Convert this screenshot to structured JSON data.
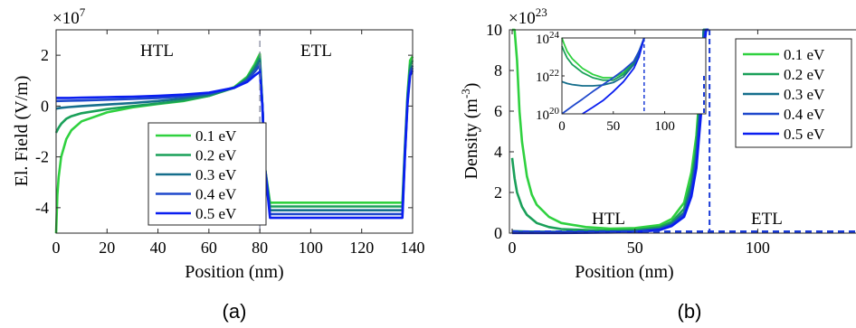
{
  "chart_data": [
    {
      "type": "line",
      "panel_label": "(a)",
      "xlabel": "Position (nm)",
      "ylabel": "El. Field (V/m)",
      "y_multiplier_label": "×10",
      "y_multiplier_exp": "7",
      "xlim": [
        0,
        140
      ],
      "ylim": [
        -5,
        3
      ],
      "xticks": [
        "0",
        "20",
        "40",
        "60",
        "80",
        "100",
        "120",
        "140"
      ],
      "yticks": [
        "-4",
        "-2",
        "0",
        "2"
      ],
      "region_labels": [
        "HTL",
        "ETL"
      ],
      "interface_x": 80,
      "legend_position": "lower-center",
      "series": [
        {
          "name": "0.1 eV",
          "color": "#2fd13f",
          "x": [
            0,
            0.5,
            1,
            2,
            4,
            6,
            10,
            20,
            30,
            40,
            50,
            60,
            70,
            75,
            78,
            80,
            81,
            82,
            84,
            90,
            110,
            130,
            136,
            137,
            138,
            139,
            140
          ],
          "y": [
            -5,
            -3.5,
            -2.8,
            -2.0,
            -1.3,
            -0.95,
            -0.6,
            -0.25,
            -0.05,
            0.08,
            0.2,
            0.4,
            0.75,
            1.15,
            1.65,
            2.05,
            0.0,
            -2.4,
            -3.8,
            -3.8,
            -3.8,
            -3.8,
            -3.8,
            -1.5,
            0.5,
            1.8,
            1.95
          ]
        },
        {
          "name": "0.2 eV",
          "color": "#1aa059",
          "x": [
            0,
            1,
            2,
            4,
            6,
            10,
            20,
            30,
            40,
            50,
            60,
            70,
            75,
            78,
            80,
            81,
            82,
            84,
            90,
            110,
            130,
            136,
            137,
            138,
            139,
            140
          ],
          "y": [
            -1.05,
            -0.85,
            -0.7,
            -0.5,
            -0.4,
            -0.28,
            -0.12,
            0.0,
            0.1,
            0.22,
            0.4,
            0.72,
            1.1,
            1.55,
            1.95,
            0.0,
            -2.4,
            -3.95,
            -3.95,
            -3.95,
            -3.95,
            -3.95,
            -1.6,
            0.4,
            1.6,
            1.8
          ]
        },
        {
          "name": "0.3 eV",
          "color": "#156e8c",
          "x": [
            0,
            2,
            5,
            10,
            20,
            30,
            40,
            50,
            60,
            70,
            75,
            78,
            80,
            81,
            82,
            84,
            90,
            110,
            130,
            136,
            137,
            138,
            139,
            140
          ],
          "y": [
            -0.1,
            -0.07,
            -0.04,
            0.0,
            0.06,
            0.12,
            0.2,
            0.3,
            0.45,
            0.72,
            1.05,
            1.45,
            1.8,
            0.0,
            -2.4,
            -4.1,
            -4.1,
            -4.1,
            -4.1,
            -4.1,
            -1.7,
            0.3,
            1.4,
            1.6
          ]
        },
        {
          "name": "0.4 eV",
          "color": "#1f48cc",
          "x": [
            0,
            5,
            10,
            20,
            30,
            40,
            50,
            60,
            70,
            75,
            78,
            80,
            81,
            82,
            84,
            90,
            110,
            130,
            136,
            137,
            138,
            139,
            140
          ],
          "y": [
            0.2,
            0.21,
            0.22,
            0.25,
            0.28,
            0.32,
            0.38,
            0.5,
            0.72,
            1.0,
            1.35,
            1.6,
            0.0,
            -2.4,
            -4.25,
            -4.25,
            -4.25,
            -4.25,
            -4.25,
            -1.8,
            0.2,
            1.3,
            1.5
          ]
        },
        {
          "name": "0.5 eV",
          "color": "#0a1ef0",
          "x": [
            0,
            5,
            10,
            20,
            30,
            40,
            50,
            60,
            70,
            75,
            78,
            80,
            81,
            82,
            84,
            90,
            110,
            130,
            136,
            137,
            138,
            139,
            140
          ],
          "y": [
            0.32,
            0.32,
            0.33,
            0.35,
            0.37,
            0.4,
            0.45,
            0.53,
            0.72,
            0.95,
            1.2,
            1.35,
            0.0,
            -2.4,
            -4.4,
            -4.4,
            -4.4,
            -4.4,
            -4.4,
            -1.9,
            0.1,
            1.2,
            1.4
          ]
        }
      ]
    },
    {
      "type": "line",
      "panel_label": "(b)",
      "xlabel": "Position (nm)",
      "ylabel_prefix": "Density (m",
      "ylabel_exp": "-3",
      "ylabel_suffix": ")",
      "y_multiplier_label": "×10",
      "y_multiplier_exp": "23",
      "xlim": [
        0,
        140
      ],
      "ylim": [
        0,
        10
      ],
      "xticks": [
        "0",
        "50",
        "100"
      ],
      "yticks": [
        "0",
        "2",
        "4",
        "6",
        "8",
        "10"
      ],
      "region_labels": [
        "HTL",
        "ETL"
      ],
      "interface_x": 80,
      "legend_position": "top-right",
      "series": [
        {
          "name": "0.1 eV",
          "color": "#2fd13f",
          "x": [
            0,
            1,
            2,
            3,
            4,
            6,
            8,
            10,
            15,
            20,
            30,
            40,
            50,
            60,
            65,
            70,
            73,
            75,
            77,
            78,
            79,
            80
          ],
          "y": [
            10,
            10,
            8.5,
            6.0,
            4.5,
            2.8,
            1.9,
            1.4,
            0.8,
            0.5,
            0.3,
            0.22,
            0.25,
            0.4,
            0.7,
            1.5,
            3.0,
            4.8,
            8.0,
            10,
            10,
            10
          ]
        },
        {
          "name": "0.2 eV",
          "color": "#1aa059",
          "x": [
            0,
            1,
            2,
            4,
            6,
            10,
            15,
            20,
            30,
            40,
            50,
            60,
            65,
            70,
            73,
            75,
            77,
            78,
            79,
            80
          ],
          "y": [
            3.7,
            2.7,
            2.0,
            1.3,
            0.9,
            0.5,
            0.3,
            0.2,
            0.15,
            0.12,
            0.15,
            0.3,
            0.55,
            1.2,
            2.5,
            4.2,
            7.5,
            10,
            10,
            10
          ]
        },
        {
          "name": "0.3 eV",
          "color": "#156e8c",
          "x": [
            0,
            5,
            10,
            20,
            30,
            40,
            50,
            60,
            65,
            70,
            73,
            75,
            77,
            78,
            79,
            80
          ],
          "y": [
            0.1,
            0.08,
            0.07,
            0.06,
            0.06,
            0.07,
            0.1,
            0.22,
            0.45,
            1.0,
            2.2,
            3.8,
            7.0,
            10,
            10,
            10
          ]
        },
        {
          "name": "0.4 eV",
          "color": "#1f48cc",
          "x": [
            0,
            10,
            20,
            30,
            40,
            50,
            60,
            65,
            70,
            73,
            75,
            77,
            78,
            79,
            80
          ],
          "y": [
            0.02,
            0.02,
            0.03,
            0.03,
            0.04,
            0.07,
            0.18,
            0.4,
            0.9,
            2.0,
            3.5,
            6.5,
            9.5,
            10,
            10
          ]
        },
        {
          "name": "0.5 eV",
          "color": "#0a1ef0",
          "x": [
            0,
            10,
            20,
            30,
            40,
            50,
            60,
            65,
            70,
            73,
            75,
            77,
            78,
            79,
            80
          ],
          "y": [
            0.01,
            0.01,
            0.01,
            0.02,
            0.03,
            0.05,
            0.15,
            0.35,
            0.8,
            1.8,
            3.2,
            6.0,
            9.0,
            10,
            10
          ]
        }
      ],
      "inset": {
        "type": "line",
        "yscale": "log",
        "xlim": [
          0,
          140
        ],
        "ylim": [
          1e+20,
          1e+24
        ],
        "xticks": [
          "0",
          "50",
          "100"
        ],
        "yticks_base": "10",
        "yticks_exp": [
          "20",
          "22",
          "24"
        ],
        "series": [
          {
            "name": "0.1 eV",
            "color": "#2fd13f",
            "x": [
              0,
              2,
              5,
              10,
              20,
              30,
              40,
              50,
              60,
              70,
              75,
              80
            ],
            "y": [
              1e+24,
              5e+23,
              2e+23,
              8e+22,
              2.5e+22,
              1.2e+22,
              8e+21,
              8e+21,
              1.5e+22,
              6e+22,
              2e+23,
              1e+24
            ]
          },
          {
            "name": "0.2 eV",
            "color": "#1aa059",
            "x": [
              0,
              2,
              5,
              10,
              20,
              30,
              40,
              50,
              60,
              70,
              75,
              80
            ],
            "y": [
              3.7e+23,
              2e+23,
              9e+22,
              4e+22,
              1.5e+22,
              8e+21,
              6e+21,
              6e+21,
              1.2e+22,
              5e+22,
              1.8e+23,
              1e+24
            ]
          },
          {
            "name": "0.3 eV",
            "color": "#156e8c",
            "x": [
              0,
              5,
              10,
              20,
              30,
              40,
              50,
              60,
              70,
              75,
              80
            ],
            "y": [
              5e+21,
              4e+21,
              3.5e+21,
              3e+21,
              3e+21,
              3.3e+21,
              4.5e+21,
              9e+21,
              4e+22,
              1.5e+23,
              1e+24
            ]
          },
          {
            "name": "0.4 eV",
            "color": "#1f48cc",
            "x": [
              0,
              10,
              20,
              30,
              40,
              50,
              60,
              70,
              75,
              80
            ],
            "y": [
              1e+20,
              2.5e+20,
              6e+20,
              1.5e+21,
              3.5e+21,
              8e+21,
              2e+22,
              6e+22,
              2e+23,
              1e+24
            ]
          },
          {
            "name": "0.5 eV",
            "color": "#0a1ef0",
            "x": [
              20,
              30,
              40,
              50,
              60,
              70,
              75,
              80
            ],
            "y": [
              1e+20,
              2.2e+20,
              5e+20,
              1.5e+21,
              5e+21,
              2.5e+22,
              1e+23,
              1e+24
            ]
          }
        ]
      }
    }
  ]
}
